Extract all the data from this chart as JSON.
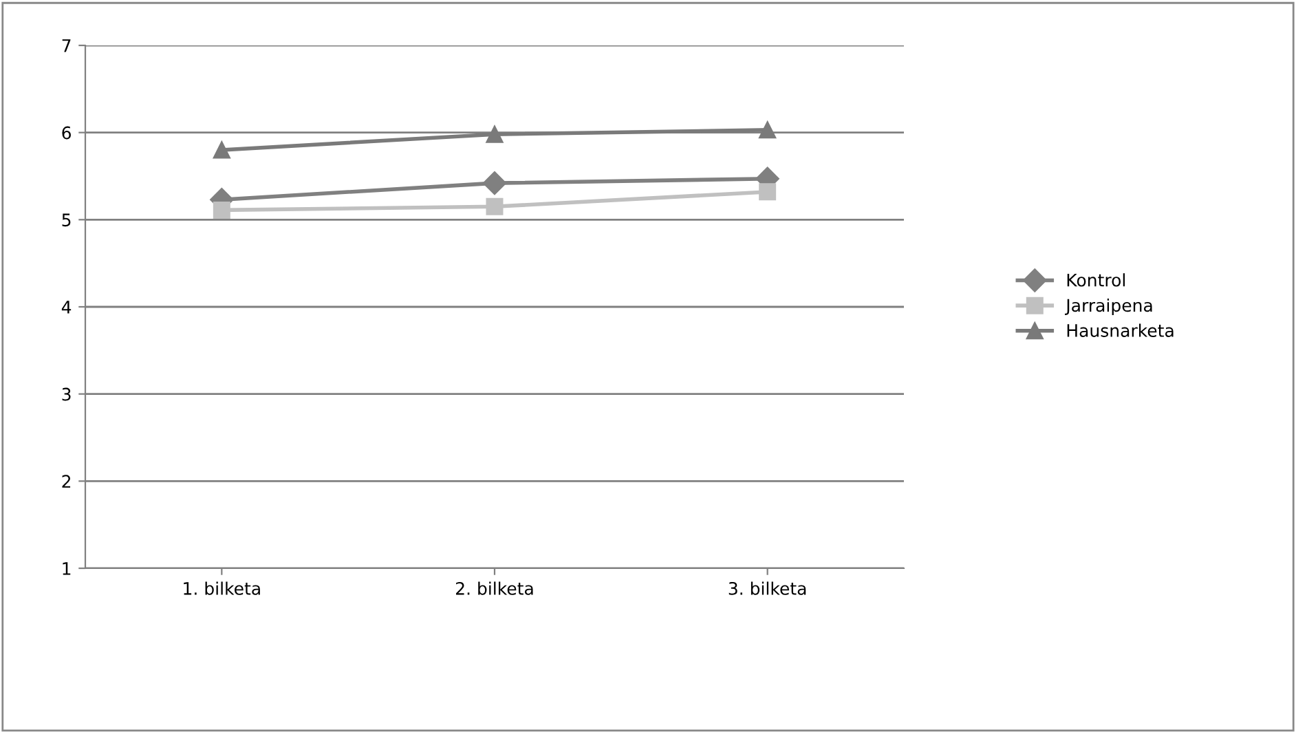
{
  "chart_data": {
    "type": "line",
    "categories": [
      "1. bilketa",
      "2. bilketa",
      "3. bilketa"
    ],
    "series": [
      {
        "name": "Kontrol",
        "color": "#808080",
        "marker": "diamond",
        "values": [
          5.23,
          5.42,
          5.47
        ]
      },
      {
        "name": "Jarraipena",
        "color": "#c0c0c0",
        "marker": "square",
        "values": [
          5.11,
          5.15,
          5.32
        ]
      },
      {
        "name": "Hausnarketa",
        "color": "#7a7a7a",
        "marker": "triangle",
        "values": [
          5.8,
          5.98,
          6.03
        ]
      }
    ],
    "ylim": [
      1,
      7
    ],
    "yticks": [
      1,
      2,
      3,
      4,
      5,
      6,
      7
    ],
    "grid": "y",
    "legend": "right"
  }
}
